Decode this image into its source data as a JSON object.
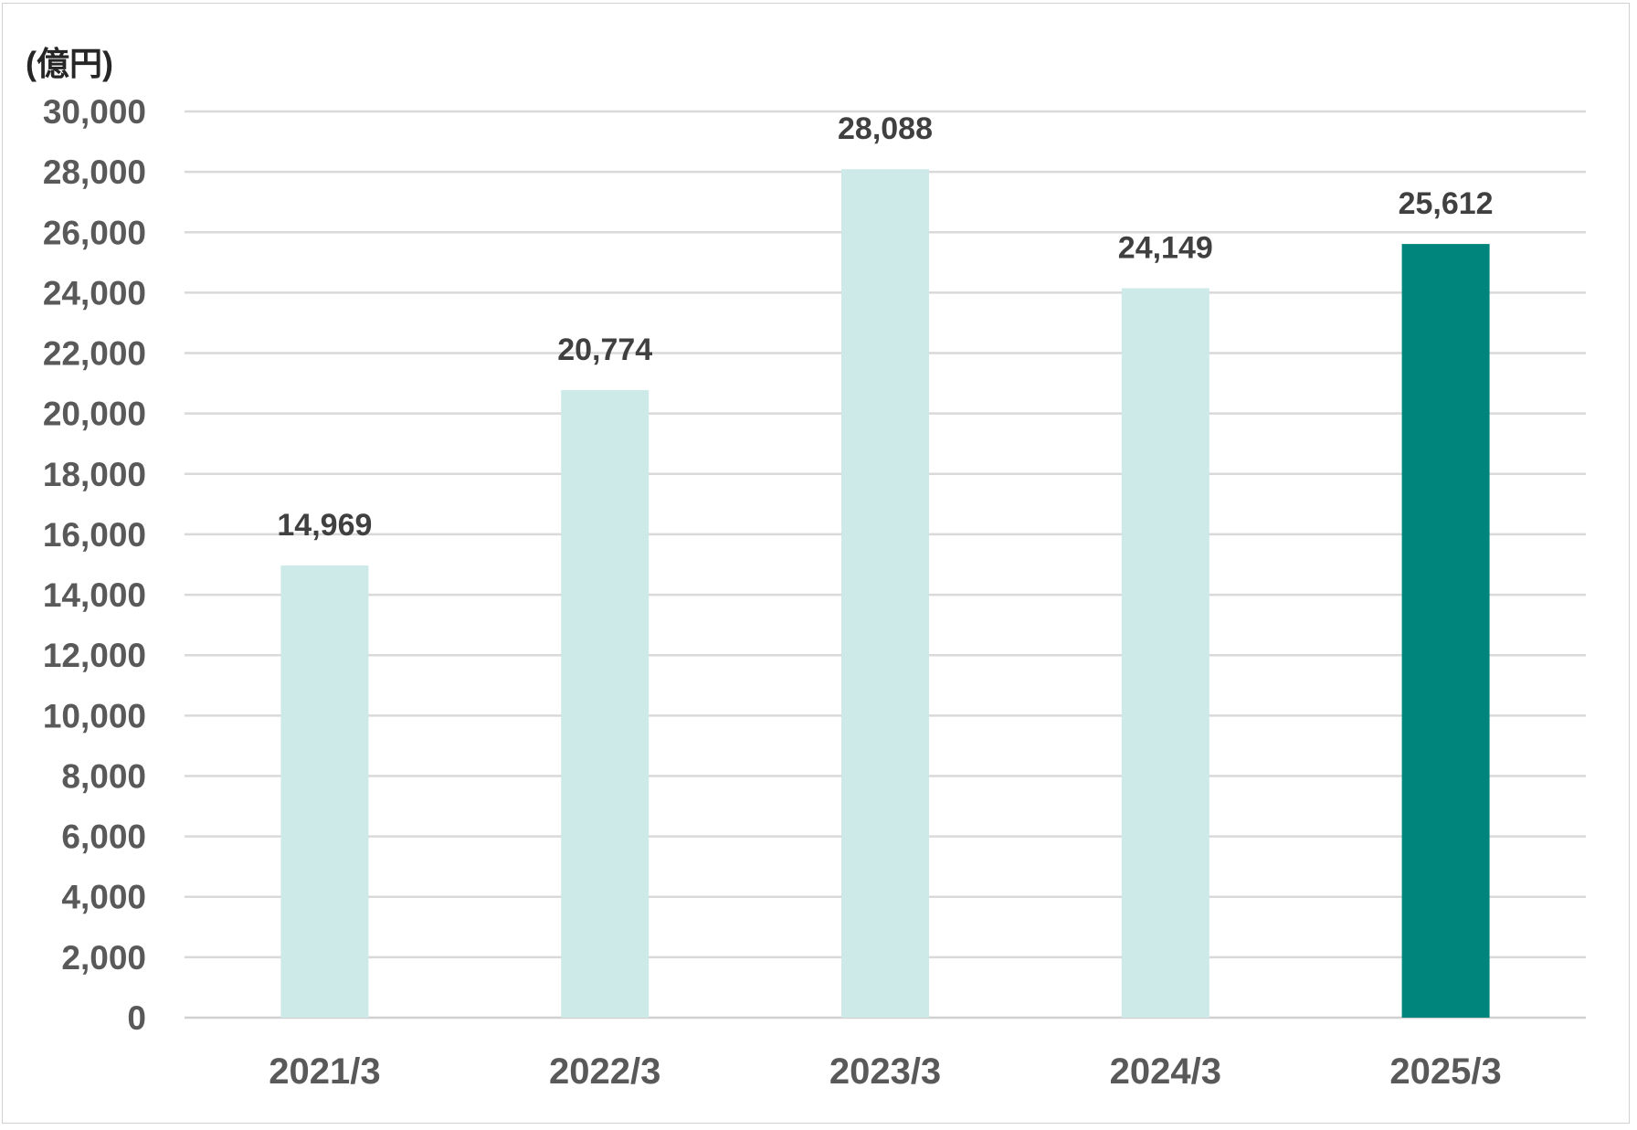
{
  "chart_data": {
    "type": "bar",
    "unit_label": "(億円)",
    "categories": [
      "2021/3",
      "2022/3",
      "2023/3",
      "2024/3",
      "2025/3"
    ],
    "values": [
      14969,
      20774,
      28088,
      24149,
      25612
    ],
    "data_labels": [
      "14,969",
      "20,774",
      "28,088",
      "24,149",
      "25,612"
    ],
    "ylim": [
      0,
      30000
    ],
    "ytick_step": 2000,
    "yticks": [
      "0",
      "2,000",
      "4,000",
      "6,000",
      "8,000",
      "10,000",
      "12,000",
      "14,000",
      "16,000",
      "18,000",
      "20,000",
      "22,000",
      "24,000",
      "26,000",
      "28,000",
      "30,000"
    ],
    "grid": true,
    "bar_colors": [
      "#cdeae9",
      "#cdeae9",
      "#cdeae9",
      "#cdeae9",
      "#00857c"
    ],
    "highlight_index": 4
  }
}
